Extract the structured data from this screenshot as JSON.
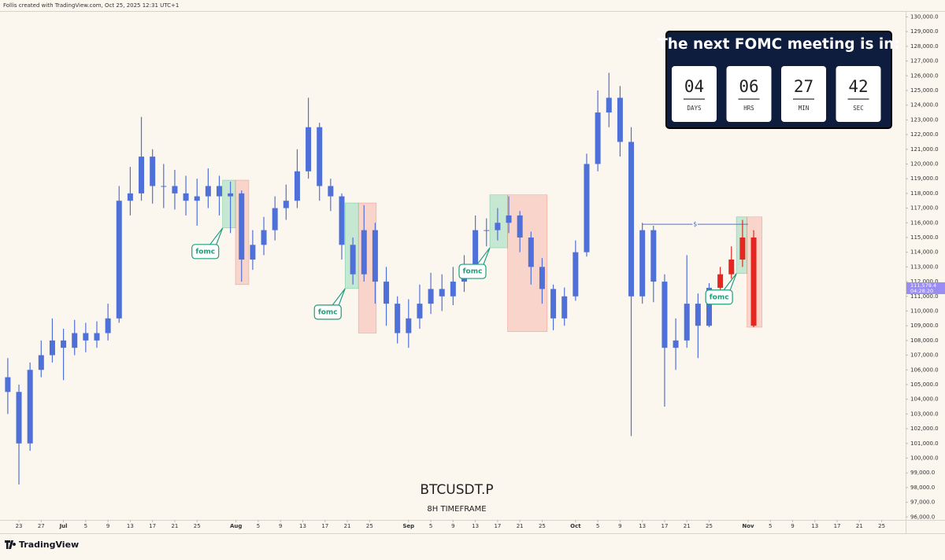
{
  "header": "Follis created with TradingView.com, Oct 25, 2025 12:31 UTC+1",
  "footer": "TradingView",
  "countdown": {
    "title": "The next FOMC meeting is in:",
    "units": [
      {
        "value": "04",
        "label": "DAYS"
      },
      {
        "value": "06",
        "label": "HRS"
      },
      {
        "value": "27",
        "label": "MIN"
      },
      {
        "value": "42",
        "label": "SEC"
      }
    ]
  },
  "chart_data": {
    "type": "candlestick",
    "symbol": "BTCUSDT.P",
    "subtitle": "8H TIMEFRAME",
    "xlim": [
      -3.4,
      159.3
    ],
    "ylim": [
      95800,
      130400
    ],
    "xticks": [
      {
        "value": 0,
        "label": "23"
      },
      {
        "value": 4,
        "label": "27"
      },
      {
        "value": 8,
        "label": "Jul"
      },
      {
        "value": 12,
        "label": "5"
      },
      {
        "value": 16,
        "label": "9"
      },
      {
        "value": 20,
        "label": "13"
      },
      {
        "value": 24,
        "label": "17"
      },
      {
        "value": 28,
        "label": "21"
      },
      {
        "value": 32,
        "label": "25"
      },
      {
        "value": 39,
        "label": "Aug"
      },
      {
        "value": 43,
        "label": "5"
      },
      {
        "value": 47,
        "label": "9"
      },
      {
        "value": 51,
        "label": "13"
      },
      {
        "value": 55,
        "label": "17"
      },
      {
        "value": 59,
        "label": "21"
      },
      {
        "value": 63,
        "label": "25"
      },
      {
        "value": 70,
        "label": "Sep"
      },
      {
        "value": 74,
        "label": "5"
      },
      {
        "value": 78,
        "label": "9"
      },
      {
        "value": 82,
        "label": "13"
      },
      {
        "value": 86,
        "label": "17"
      },
      {
        "value": 90,
        "label": "21"
      },
      {
        "value": 94,
        "label": "25"
      },
      {
        "value": 100,
        "label": "Oct"
      },
      {
        "value": 104,
        "label": "5"
      },
      {
        "value": 108,
        "label": "9"
      },
      {
        "value": 112,
        "label": "13"
      },
      {
        "value": 116,
        "label": "17"
      },
      {
        "value": 120,
        "label": "21"
      },
      {
        "value": 124,
        "label": "25"
      },
      {
        "value": 131,
        "label": "Nov"
      },
      {
        "value": 135,
        "label": "5"
      },
      {
        "value": 139,
        "label": "9"
      },
      {
        "value": 143,
        "label": "13"
      },
      {
        "value": 147,
        "label": "17"
      },
      {
        "value": 151,
        "label": "21"
      },
      {
        "value": 155,
        "label": "25"
      }
    ],
    "yticks": [
      {
        "value": 96000,
        "label": "96,000.0"
      },
      {
        "value": 97000,
        "label": "97,000.0"
      },
      {
        "value": 98000,
        "label": "98,000.0"
      },
      {
        "value": 99000,
        "label": "99,000.0"
      },
      {
        "value": 100000,
        "label": "100,000.0"
      },
      {
        "value": 101000,
        "label": "101,000.0"
      },
      {
        "value": 102000,
        "label": "102,000.0"
      },
      {
        "value": 103000,
        "label": "103,000.0"
      },
      {
        "value": 104000,
        "label": "104,000.0"
      },
      {
        "value": 105000,
        "label": "105,000.0"
      },
      {
        "value": 106000,
        "label": "106,000.0"
      },
      {
        "value": 107000,
        "label": "107,000.0"
      },
      {
        "value": 108000,
        "label": "108,000.0"
      },
      {
        "value": 109000,
        "label": "109,000.0"
      },
      {
        "value": 110000,
        "label": "110,000.0"
      },
      {
        "value": 111000,
        "label": "111,000.0"
      },
      {
        "value": 112000,
        "label": "112,000.0"
      },
      {
        "value": 113000,
        "label": "113,000.0"
      },
      {
        "value": 114000,
        "label": "114,000.0"
      },
      {
        "value": 115000,
        "label": "115,000.0"
      },
      {
        "value": 116000,
        "label": "116,000.0"
      },
      {
        "value": 117000,
        "label": "117,000.0"
      },
      {
        "value": 118000,
        "label": "118,000.0"
      },
      {
        "value": 119000,
        "label": "119,000.0"
      },
      {
        "value": 120000,
        "label": "120,000.0"
      },
      {
        "value": 121000,
        "label": "121,000.0"
      },
      {
        "value": 122000,
        "label": "122,000.0"
      },
      {
        "value": 123000,
        "label": "123,000.0"
      },
      {
        "value": 124000,
        "label": "124,000.0"
      },
      {
        "value": 125000,
        "label": "125,000.0"
      },
      {
        "value": 126000,
        "label": "126,000.0"
      },
      {
        "value": 127000,
        "label": "127,000.0"
      },
      {
        "value": 128000,
        "label": "128,000.0"
      },
      {
        "value": 129000,
        "label": "129,000.0"
      },
      {
        "value": 130000,
        "label": "130,000.0"
      }
    ],
    "series": [
      {
        "color": "#4f70d8",
        "x": [
          -2,
          0,
          2,
          4,
          6,
          8,
          10,
          12,
          14,
          16,
          18,
          20,
          22,
          24,
          26,
          28,
          30,
          32,
          34,
          36,
          38,
          40,
          42,
          44,
          46,
          48,
          50,
          52,
          54,
          56,
          58,
          60,
          62,
          64,
          66,
          68,
          70,
          72,
          74,
          76,
          78,
          80,
          82,
          84,
          86,
          88,
          90,
          92,
          94,
          96,
          98,
          100,
          102,
          104,
          106,
          108,
          110,
          112,
          114,
          116,
          118,
          120,
          122,
          124
        ],
        "open": [
          105500,
          104500,
          101000,
          106000,
          107000,
          108000,
          107500,
          108500,
          108000,
          108500,
          109500,
          117500,
          118000,
          120500,
          118500,
          118500,
          118000,
          117500,
          117800,
          118500,
          117800,
          118000,
          113500,
          114500,
          115500,
          117000,
          117500,
          119500,
          122500,
          118500,
          117800,
          114500,
          112500,
          115500,
          112000,
          110500,
          108500,
          109500,
          110500,
          111500,
          111000,
          112000,
          113000,
          115500,
          115500,
          116000,
          116500,
          115000,
          113000,
          111500,
          109500,
          111000,
          114000,
          120000,
          123500,
          124500,
          121500,
          111000,
          115500,
          112000,
          107500,
          108000,
          110500,
          109000
        ],
        "high": [
          106800,
          105000,
          106500,
          108000,
          109500,
          108800,
          109400,
          109200,
          109300,
          110500,
          118500,
          119800,
          123200,
          121000,
          120000,
          119600,
          119200,
          119000,
          119700,
          119200,
          118800,
          118200,
          115500,
          116400,
          117800,
          118600,
          121000,
          124500,
          122800,
          119000,
          118000,
          115000,
          117200,
          116000,
          113000,
          111000,
          110800,
          111800,
          112600,
          112500,
          113000,
          113800,
          116500,
          116300,
          117000,
          117800,
          116800,
          115400,
          113600,
          111800,
          111600,
          114800,
          120700,
          125000,
          126200,
          125300,
          122500,
          116000,
          115800,
          112500,
          109500,
          113800,
          111200,
          111900
        ],
        "low": [
          103000,
          98200,
          100500,
          105500,
          106500,
          105300,
          107000,
          107200,
          107500,
          108000,
          109200,
          116500,
          117500,
          117300,
          117000,
          116900,
          116500,
          115800,
          117000,
          116500,
          115300,
          112000,
          112800,
          113800,
          114800,
          116200,
          117000,
          119000,
          117500,
          116800,
          113500,
          111800,
          112000,
          110500,
          109000,
          107800,
          107500,
          108800,
          109800,
          110000,
          110400,
          111300,
          112800,
          114400,
          114800,
          115300,
          114000,
          111800,
          110500,
          108700,
          109000,
          110700,
          113700,
          119500,
          122500,
          120500,
          101500,
          110500,
          110600,
          103500,
          106000,
          107500,
          106800,
          108900
        ],
        "close": [
          104500,
          101000,
          106000,
          107000,
          108000,
          107500,
          108500,
          108000,
          108500,
          109500,
          117500,
          118000,
          120500,
          118500,
          118500,
          118000,
          117500,
          117800,
          118500,
          117800,
          118000,
          113500,
          114500,
          115500,
          117000,
          117500,
          119500,
          122500,
          118500,
          117800,
          114500,
          112500,
          115500,
          112000,
          110500,
          108500,
          109500,
          110500,
          111500,
          111000,
          112000,
          113000,
          115500,
          115500,
          116000,
          116500,
          115000,
          113000,
          111500,
          109500,
          111000,
          114000,
          120000,
          123500,
          124500,
          121500,
          111000,
          115500,
          112000,
          107500,
          108000,
          110500,
          109000,
          111579.4
        ]
      },
      {
        "color": "#e3261f",
        "x": [
          126,
          128,
          130,
          132
        ],
        "open": [
          111579.4,
          112500,
          113500,
          115000
        ],
        "high": [
          113000,
          114400,
          116200,
          115500
        ],
        "low": [
          111300,
          112200,
          113000,
          108900
        ],
        "close": [
          112500,
          113500,
          115000,
          109000
        ]
      }
    ],
    "zones": [
      {
        "x": [
          36.6,
          38.9
        ],
        "y": [
          115650,
          118900
        ],
        "color": "#3dbf86",
        "label": "fomc"
      },
      {
        "x": [
          38.9,
          41.3
        ],
        "y": [
          111800,
          118900
        ],
        "color": "#f07a6e"
      },
      {
        "x": [
          58.6,
          61.0
        ],
        "y": [
          111530,
          117350
        ],
        "color": "#3dbf86",
        "label": "fomc"
      },
      {
        "x": [
          61.0,
          64.2
        ],
        "y": [
          108500,
          117350
        ],
        "color": "#f07a6e"
      },
      {
        "x": [
          84.6,
          87.8
        ],
        "y": [
          114300,
          117900
        ],
        "color": "#3dbf86",
        "label": "fomc"
      },
      {
        "x": [
          87.8,
          94.9
        ],
        "y": [
          108600,
          117900
        ],
        "color": "#f07a6e"
      },
      {
        "x": [
          128.9,
          130.8
        ],
        "y": [
          112550,
          116400
        ],
        "color": "#3dbf86",
        "label": "fomc"
      },
      {
        "x": [
          130.8,
          133.5
        ],
        "y": [
          108900,
          116400
        ],
        "color": "#f07a6e"
      }
    ],
    "level": {
      "value": 115900,
      "x": [
        112,
        131
      ],
      "label": "$",
      "color": "#4f70d8"
    },
    "last_price": {
      "price": {
        "value": 111579.4,
        "label": "111,579.4"
      },
      "countdown": "04:28:20",
      "color": "#9a8cf2"
    }
  }
}
